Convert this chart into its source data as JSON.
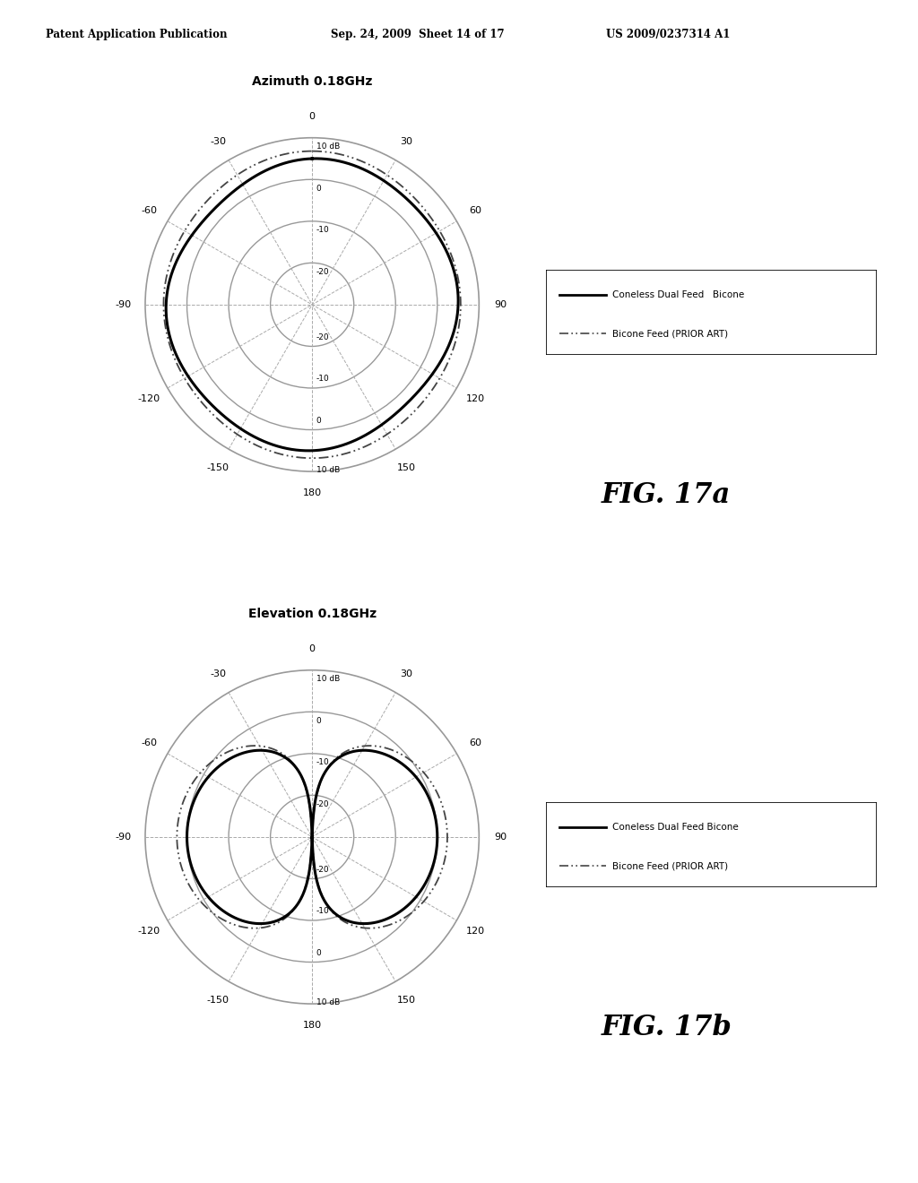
{
  "header_left": "Patent Application Publication",
  "header_mid": "Sep. 24, 2009  Sheet 14 of 17",
  "header_right": "US 2009/0237314 A1",
  "fig_title_a": "Azimuth 0.18GHz",
  "fig_title_b": "Elevation 0.18GHz",
  "fig_label_a": "FIG. 17a",
  "fig_label_b": "FIG. 17b",
  "legend_line1_a": "Coneless Dual Feed   Bicone",
  "legend_line2_a": "Bicone Feed (PRIOR ART)",
  "legend_line1_b": "Coneless Dual Feed Bicone",
  "legend_line2_b": "Bicone Feed (PRIOR ART)",
  "background_color": "#ffffff",
  "grid_color": "#999999",
  "spoke_color": "#aaaaaa",
  "solid_line_color": "#000000",
  "dashed_line_color": "#444444",
  "radii": [
    1.0,
    0.75,
    0.5,
    0.25
  ],
  "ring_labels_top": [
    "10 dB",
    "0",
    "-10",
    "-20"
  ],
  "ring_labels_bot": [
    "10 dB",
    "0",
    "-10",
    "-20"
  ]
}
